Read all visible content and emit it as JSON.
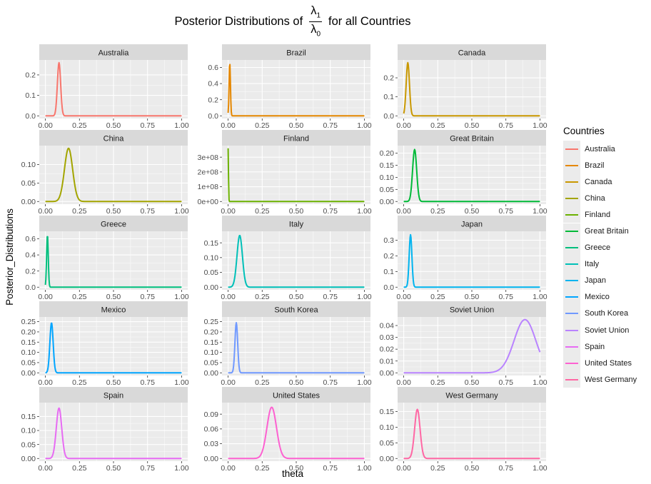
{
  "chart_data": {
    "type": "line",
    "title": {
      "prefix": "Posterior Distributions  of",
      "numerator": "λ",
      "numerator_sub": "1",
      "denominator": "λ",
      "denominator_sub": "0",
      "suffix": "for all Countries"
    },
    "xlabel": "theta",
    "ylabel": "Posterior_Distributions",
    "xlim": [
      0,
      1
    ],
    "x_ticks": [
      "0.00",
      "0.25",
      "0.50",
      "0.75",
      "1.00"
    ],
    "grid": true,
    "facet_columns": 3,
    "legend": {
      "title": "Countries",
      "position": "right"
    },
    "panels": [
      {
        "name": "Australia",
        "color": "#F8766D",
        "ylim": [
          -0.013,
          0.273
        ],
        "y_ticks": [
          "0.0",
          "0.1",
          "0.2"
        ],
        "y_values": [
          0,
          0.1,
          0.2
        ],
        "peak_x": 0.1,
        "peak_y": 0.26,
        "spread": 0.012
      },
      {
        "name": "Brazil",
        "color": "#E58700",
        "ylim": [
          -0.033,
          0.693
        ],
        "y_ticks": [
          "0.0",
          "0.2",
          "0.4",
          "0.6"
        ],
        "y_values": [
          0,
          0.2,
          0.4,
          0.6
        ],
        "peak_x": 0.012,
        "peak_y": 0.66,
        "spread": 0.005
      },
      {
        "name": "Canada",
        "color": "#C99800",
        "ylim": [
          -0.014,
          0.294
        ],
        "y_ticks": [
          "0.0",
          "0.1",
          "0.2"
        ],
        "y_values": [
          0,
          0.1,
          0.2
        ],
        "peak_x": 0.03,
        "peak_y": 0.28,
        "spread": 0.012
      },
      {
        "name": "China",
        "color": "#A3A500",
        "ylim": [
          -0.0072,
          0.1512
        ],
        "y_ticks": [
          "0.00",
          "0.05",
          "0.10"
        ],
        "y_values": [
          0,
          0.05,
          0.1
        ],
        "peak_x": 0.17,
        "peak_y": 0.144,
        "spread": 0.03
      },
      {
        "name": "Finland",
        "color": "#6BB100",
        "ylim": [
          -18000000,
          378000000
        ],
        "y_ticks": [
          "0e+00",
          "1e+08",
          "2e+08",
          "3e+08"
        ],
        "y_values": [
          0,
          100000000,
          200000000,
          300000000
        ],
        "peak_x": 0.0,
        "peak_y": 360000000,
        "spread": 0.0025
      },
      {
        "name": "Great Britain",
        "color": "#00BA38",
        "ylim": [
          -0.011,
          0.231
        ],
        "y_ticks": [
          "0.00",
          "0.05",
          "0.10",
          "0.15",
          "0.20"
        ],
        "y_values": [
          0,
          0.05,
          0.1,
          0.15,
          0.2
        ],
        "peak_x": 0.08,
        "peak_y": 0.215,
        "spread": 0.015
      },
      {
        "name": "Greece",
        "color": "#00BF7D",
        "ylim": [
          -0.033,
          0.693
        ],
        "y_ticks": [
          "0.0",
          "0.2",
          "0.4",
          "0.6"
        ],
        "y_values": [
          0,
          0.2,
          0.4,
          0.6
        ],
        "peak_x": 0.015,
        "peak_y": 0.65,
        "spread": 0.006
      },
      {
        "name": "Italy",
        "color": "#00C0B8",
        "ylim": [
          -0.009,
          0.189
        ],
        "y_ticks": [
          "0.00",
          "0.05",
          "0.10",
          "0.15"
        ],
        "y_values": [
          0,
          0.05,
          0.1,
          0.15
        ],
        "peak_x": 0.085,
        "peak_y": 0.175,
        "spread": 0.02
      },
      {
        "name": "Japan",
        "color": "#00B4EF",
        "ylim": [
          -0.017,
          0.357
        ],
        "y_ticks": [
          "0.0",
          "0.1",
          "0.2",
          "0.3"
        ],
        "y_values": [
          0,
          0.1,
          0.2,
          0.3
        ],
        "peak_x": 0.05,
        "peak_y": 0.335,
        "spread": 0.01
      },
      {
        "name": "Mexico",
        "color": "#00A5FF",
        "ylim": [
          -0.013,
          0.273
        ],
        "y_ticks": [
          "0.00",
          "0.05",
          "0.10",
          "0.15",
          "0.20",
          "0.25"
        ],
        "y_values": [
          0,
          0.05,
          0.1,
          0.15,
          0.2,
          0.25
        ],
        "peak_x": 0.045,
        "peak_y": 0.245,
        "spread": 0.012
      },
      {
        "name": "South Korea",
        "color": "#7099FF",
        "ylim": [
          -0.013,
          0.273
        ],
        "y_ticks": [
          "0.00",
          "0.05",
          "0.10",
          "0.15",
          "0.20",
          "0.25"
        ],
        "y_values": [
          0,
          0.05,
          0.1,
          0.15,
          0.2,
          0.25
        ],
        "peak_x": 0.06,
        "peak_y": 0.245,
        "spread": 0.01
      },
      {
        "name": "Soviet Union",
        "color": "#B983FF",
        "ylim": [
          -0.00225,
          0.04725
        ],
        "y_ticks": [
          "0.00",
          "0.01",
          "0.02",
          "0.03",
          "0.04"
        ],
        "y_values": [
          0,
          0.01,
          0.02,
          0.03,
          0.04
        ],
        "peak_x": 0.89,
        "peak_y": 0.045,
        "spread": 0.08
      },
      {
        "name": "Spain",
        "color": "#E76BF3",
        "ylim": [
          -0.0095,
          0.1995
        ],
        "y_ticks": [
          "0.00",
          "0.05",
          "0.10",
          "0.15"
        ],
        "y_values": [
          0,
          0.05,
          0.1,
          0.15
        ],
        "peak_x": 0.1,
        "peak_y": 0.18,
        "spread": 0.02
      },
      {
        "name": "United States",
        "color": "#FD61D1",
        "ylim": [
          -0.0054,
          0.1134
        ],
        "y_ticks": [
          "0.00",
          "0.03",
          "0.06",
          "0.09"
        ],
        "y_values": [
          0,
          0.03,
          0.06,
          0.09
        ],
        "peak_x": 0.32,
        "peak_y": 0.104,
        "spread": 0.035
      },
      {
        "name": "West Germany",
        "color": "#FF67A4",
        "ylim": [
          -0.0085,
          0.1785
        ],
        "y_ticks": [
          "0.00",
          "0.05",
          "0.10",
          "0.15"
        ],
        "y_values": [
          0,
          0.05,
          0.1,
          0.15
        ],
        "peak_x": 0.1,
        "peak_y": 0.157,
        "spread": 0.02
      }
    ]
  }
}
